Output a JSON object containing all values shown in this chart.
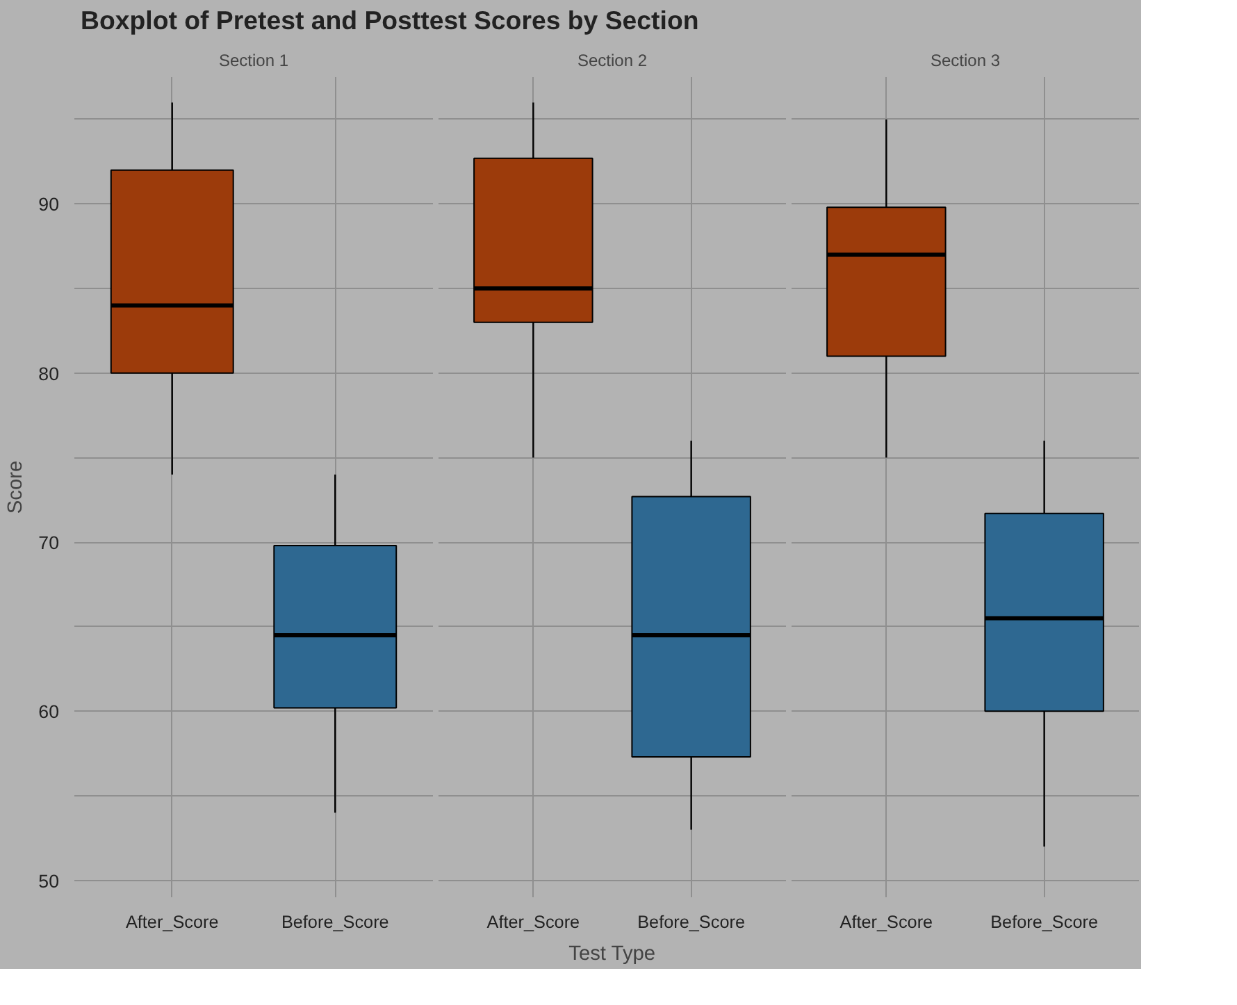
{
  "chart_data": [
    {
      "type": "box",
      "title": "Boxplot of Pretest and Posttest Scores by Section",
      "subtitle": "Section 1",
      "ylabel": "Score",
      "categories": [
        "After_Score",
        "Before_Score"
      ],
      "colors": [
        "#9c3b0b",
        "#2e6891"
      ],
      "boxes": [
        {
          "low": 74,
          "q1": 80,
          "median": 84,
          "q3": 92,
          "high": 96
        },
        {
          "low": 54,
          "q1": 60.2,
          "median": 64.5,
          "q3": 69.8,
          "high": 74
        }
      ],
      "ylim": [
        49,
        97.5
      ],
      "yticks": [
        {
          "value": 50,
          "label": "50"
        },
        {
          "value": 55,
          "label": null
        },
        {
          "value": 60,
          "label": "60"
        },
        {
          "value": 65,
          "label": null
        },
        {
          "value": 70,
          "label": "70"
        },
        {
          "value": 75,
          "label": null
        },
        {
          "value": 80,
          "label": "80"
        },
        {
          "value": 85,
          "label": null
        },
        {
          "value": 90,
          "label": "90"
        },
        {
          "value": 95,
          "label": null
        }
      ],
      "grid": true
    },
    {
      "type": "box",
      "title": "Section 2",
      "xlabel": "Test Type",
      "categories": [
        "After_Score",
        "Before_Score"
      ],
      "colors": [
        "#9c3b0b",
        "#2e6891"
      ],
      "boxes": [
        {
          "low": 75,
          "q1": 83,
          "median": 85,
          "q3": 92.7,
          "high": 96
        },
        {
          "low": 53,
          "q1": 57.3,
          "median": 64.5,
          "q3": 72.7,
          "high": 76
        }
      ],
      "ylim": [
        49,
        97.5
      ],
      "yticks": [
        50,
        55,
        60,
        65,
        70,
        75,
        80,
        85,
        90,
        95
      ],
      "grid": true,
      "tick_labels": "x"
    },
    {
      "type": "box",
      "title": "Section 3",
      "categories": [
        "After_Score",
        "Before_Score"
      ],
      "colors": [
        "#9c3b0b",
        "#2e6891"
      ],
      "boxes": [
        {
          "low": 75,
          "q1": 81,
          "median": 87,
          "q3": 89.8,
          "high": 95
        },
        {
          "low": 52,
          "q1": 60,
          "median": 65.5,
          "q3": 71.7,
          "high": 76
        }
      ],
      "ylim": [
        49,
        97.5
      ],
      "yticks": [
        50,
        55,
        60,
        65,
        70,
        75,
        80,
        85,
        90,
        95
      ],
      "grid": true,
      "tick_labels": "x"
    }
  ]
}
